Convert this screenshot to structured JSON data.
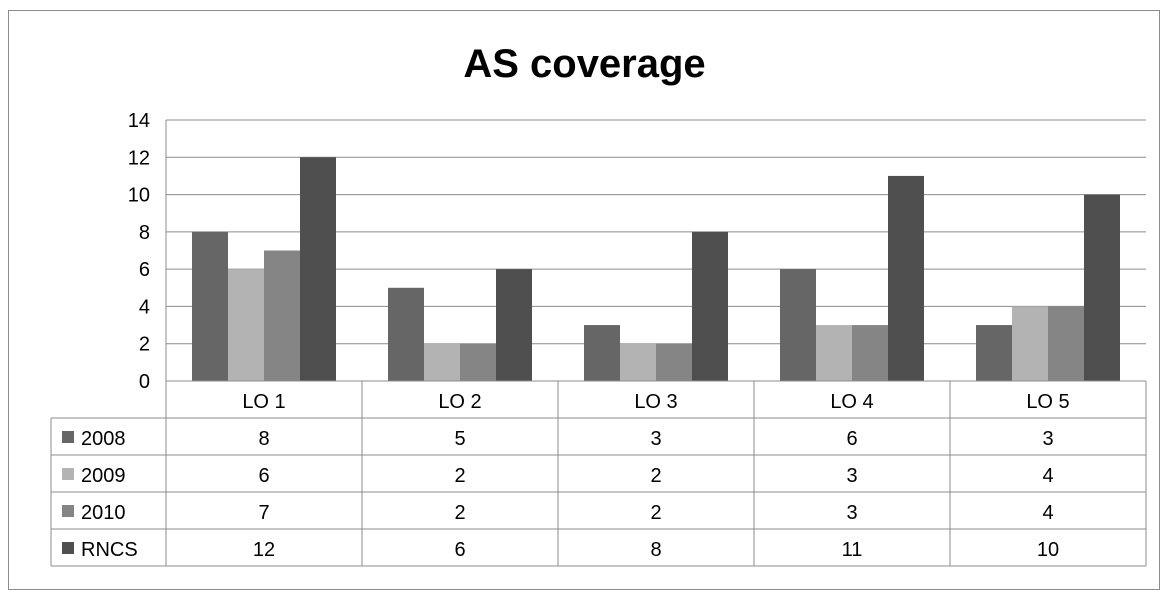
{
  "chart_data": {
    "type": "bar",
    "title": "AS coverage",
    "categories": [
      "LO 1",
      "LO 2",
      "LO 3",
      "LO 4",
      "LO 5"
    ],
    "series": [
      {
        "name": "2008",
        "values": [
          8,
          5,
          3,
          6,
          3
        ],
        "color": "#666666"
      },
      {
        "name": "2009",
        "values": [
          6,
          2,
          2,
          3,
          4
        ],
        "color": "#b3b3b3"
      },
      {
        "name": "2010",
        "values": [
          7,
          2,
          2,
          3,
          4
        ],
        "color": "#858585"
      },
      {
        "name": "RNCS",
        "values": [
          12,
          6,
          8,
          11,
          10
        ],
        "color": "#4f4f4f"
      }
    ],
    "ylim": [
      0,
      14
    ],
    "yticks": [
      "0",
      "2",
      "4",
      "6",
      "8",
      "10",
      "12",
      "14"
    ],
    "grid": true,
    "legend": "data-table"
  }
}
